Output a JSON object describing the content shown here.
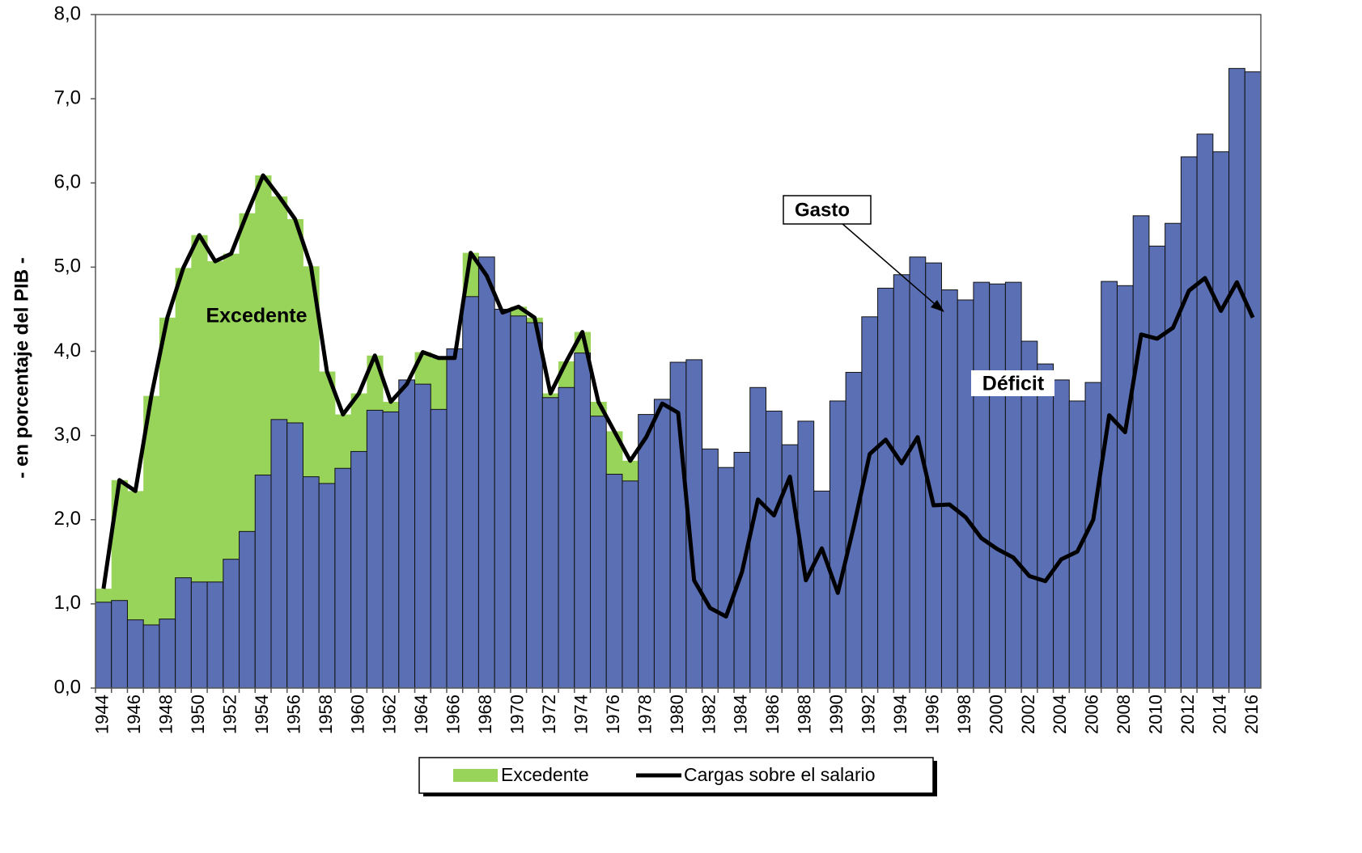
{
  "chart_data": {
    "type": "bar-line",
    "ylabel": "- en porcentaje del PIB -",
    "categories": [
      "1944",
      null,
      "1946",
      null,
      "1948",
      null,
      "1950",
      null,
      "1952",
      null,
      "1954",
      null,
      "1956",
      null,
      "1958",
      null,
      "1960",
      null,
      "1962",
      null,
      "1964",
      null,
      "1966",
      null,
      "1968",
      null,
      "1970",
      null,
      "1972",
      null,
      "1974",
      null,
      "1976",
      null,
      "1978",
      null,
      "1980",
      null,
      "1982",
      null,
      "1984",
      null,
      "1986",
      null,
      "1988",
      null,
      "1990",
      null,
      "1992",
      null,
      "1994",
      null,
      "1996",
      null,
      "1998",
      null,
      "2000",
      null,
      "2002",
      null,
      "2004",
      null,
      "2006",
      null,
      "2008",
      null,
      "2010",
      null,
      "2012",
      null,
      "2014",
      null,
      "2016"
    ],
    "series": [
      {
        "name": "Gasto",
        "color": "#5b6fb4",
        "values": [
          1.02,
          1.04,
          0.81,
          0.75,
          0.82,
          1.31,
          1.26,
          1.26,
          1.53,
          1.86,
          2.53,
          3.19,
          3.15,
          2.51,
          2.43,
          2.61,
          2.81,
          3.3,
          3.28,
          3.66,
          3.61,
          3.31,
          4.03,
          4.65,
          5.12,
          4.5,
          4.42,
          4.34,
          3.45,
          3.57,
          3.98,
          3.23,
          2.54,
          2.46,
          3.25,
          3.43,
          3.87,
          3.9,
          2.84,
          2.62,
          2.8,
          3.57,
          3.29,
          2.89,
          3.17,
          2.34,
          3.41,
          3.75,
          4.41,
          4.75,
          4.91,
          5.12,
          5.05,
          4.73,
          4.61,
          4.82,
          4.8,
          4.82,
          4.12,
          3.85,
          3.66,
          3.41,
          3.63,
          4.83,
          4.78,
          5.61,
          5.25,
          5.52,
          6.31,
          6.58,
          6.37,
          7.36,
          7.32
        ]
      },
      {
        "name": "Cargas sobre el salario",
        "color": "#000000",
        "values": [
          1.18,
          2.47,
          2.34,
          3.47,
          4.4,
          4.99,
          5.38,
          5.07,
          5.16,
          5.64,
          6.09,
          5.84,
          5.57,
          5.01,
          3.76,
          3.25,
          3.5,
          3.95,
          3.4,
          3.61,
          3.99,
          3.92,
          3.92,
          5.17,
          4.9,
          4.46,
          4.53,
          4.4,
          3.5,
          3.88,
          4.23,
          3.4,
          3.05,
          2.7,
          2.98,
          3.38,
          3.27,
          1.28,
          0.95,
          0.85,
          1.38,
          2.24,
          2.05,
          2.51,
          1.28,
          1.66,
          1.13,
          1.92,
          2.78,
          2.95,
          2.67,
          2.98,
          2.17,
          2.18,
          2.03,
          1.78,
          1.65,
          1.55,
          1.33,
          1.27,
          1.53,
          1.62,
          2.0,
          3.24,
          3.04,
          4.2,
          4.15,
          4.28,
          4.72,
          4.87,
          4.48,
          4.82,
          4.4
        ]
      }
    ],
    "excedente": {
      "name": "Excedente",
      "color": "#99d45a"
    },
    "annotations": {
      "deficit": "Déficit"
    },
    "ylim": [
      0,
      8
    ],
    "yticks": [
      {
        "value": 0,
        "label": "0,0"
      },
      {
        "value": 1,
        "label": "1,0"
      },
      {
        "value": 2,
        "label": "2,0"
      },
      {
        "value": 3,
        "label": "3,0"
      },
      {
        "value": 4,
        "label": "4,0"
      },
      {
        "value": 5,
        "label": "5,0"
      },
      {
        "value": 6,
        "label": "6,0"
      },
      {
        "value": 7,
        "label": "7,0"
      },
      {
        "value": 8,
        "label": "8,0"
      }
    ]
  }
}
